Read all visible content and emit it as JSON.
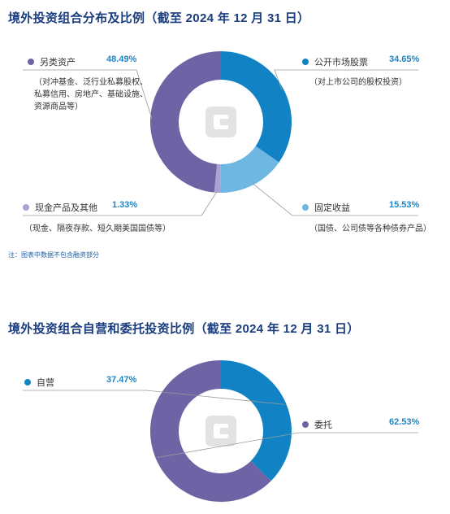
{
  "colors": {
    "title": "#1a3d80",
    "percent": "#1a86c8",
    "listed_equity": "#1183c5",
    "fixed_income": "#6db7e2",
    "cash": "#a7a3d2",
    "alternatives": "#6e64a5",
    "logo": "#e3e3e3"
  },
  "chart1": {
    "title": "境外投资组合分布及比例（截至 2024 年 12 月 31 日）",
    "note": "注：图表中数据不包含融资部分",
    "slices": [
      {
        "label": "公开市场股票",
        "pct": "34.65%",
        "desc": "（对上市公司的股权投资）"
      },
      {
        "label": "固定收益",
        "pct": "15.53%",
        "desc": "（国债、公司债等各种债券产品）"
      },
      {
        "label": "现金产品及其他",
        "pct": "1.33%",
        "desc": "（现金、隔夜存款、短久期美国国债等）"
      },
      {
        "label": "另类资产",
        "pct": "48.49%",
        "desc_lines": [
          "（对冲基金、泛行业私募股权、",
          "私募信用、房地产、基础设施、",
          "资源商品等）"
        ]
      }
    ]
  },
  "chart2": {
    "title": "境外投资组合自营和委托投资比例（截至 2024 年 12 月 31 日）",
    "slices": [
      {
        "label": "自营",
        "pct": "37.47%"
      },
      {
        "label": "委托",
        "pct": "62.53%"
      }
    ]
  },
  "chart_data": [
    {
      "type": "pie",
      "title": "境外投资组合分布及比例（截至 2024 年 12 月 31 日）",
      "categories": [
        "公开市场股票",
        "固定收益",
        "现金产品及其他",
        "另类资产"
      ],
      "values": [
        34.65,
        15.53,
        1.33,
        48.49
      ],
      "colors": [
        "#1183c5",
        "#6db7e2",
        "#a7a3d2",
        "#6e64a5"
      ],
      "unit": "%"
    },
    {
      "type": "pie",
      "title": "境外投资组合自营和委托投资比例（截至 2024 年 12 月 31 日）",
      "categories": [
        "自营",
        "委托"
      ],
      "values": [
        37.47,
        62.53
      ],
      "colors": [
        "#1183c5",
        "#6e64a5"
      ],
      "unit": "%"
    }
  ]
}
